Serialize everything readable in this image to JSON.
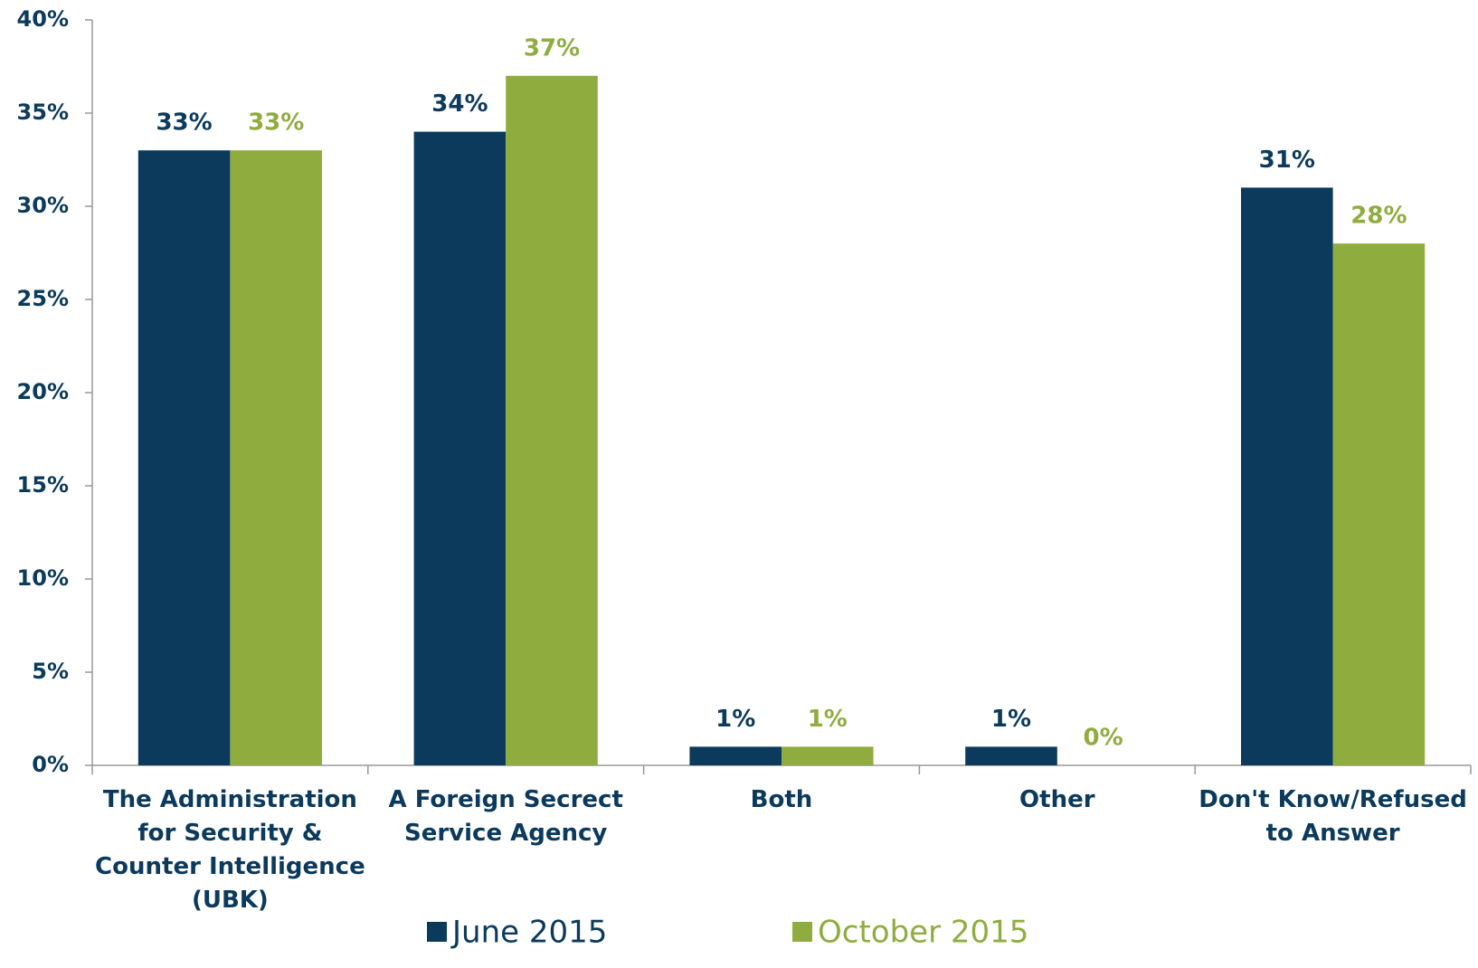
{
  "chart_data": {
    "type": "bar",
    "categories": [
      "The Administration for Security & Counter Intelligence (UBK)",
      "A Foreign Secrect Service Agency",
      "Both",
      "Other",
      "Don't Know/Refused to Answer"
    ],
    "series": [
      {
        "name": "June 2015",
        "color": "#0b3a5c",
        "values": [
          33,
          34,
          1,
          1,
          31
        ],
        "value_labels": [
          "33%",
          "34%",
          "1%",
          "1%",
          "31%"
        ]
      },
      {
        "name": "October 2015",
        "color": "#8fad3f",
        "values": [
          33,
          37,
          1,
          0,
          28
        ],
        "value_labels": [
          "33%",
          "37%",
          "1%",
          "0%",
          "28%"
        ]
      }
    ],
    "ylim": [
      0,
      40
    ],
    "yticks": [
      {
        "value": 0,
        "label": "0%"
      },
      {
        "value": 5,
        "label": "5%"
      },
      {
        "value": 10,
        "label": "10%"
      },
      {
        "value": 15,
        "label": "15%"
      },
      {
        "value": 20,
        "label": "20%"
      },
      {
        "value": 25,
        "label": "25%"
      },
      {
        "value": 30,
        "label": "30%"
      },
      {
        "value": 35,
        "label": "35%"
      },
      {
        "value": 40,
        "label": "40%"
      }
    ],
    "legend": "bottom"
  }
}
